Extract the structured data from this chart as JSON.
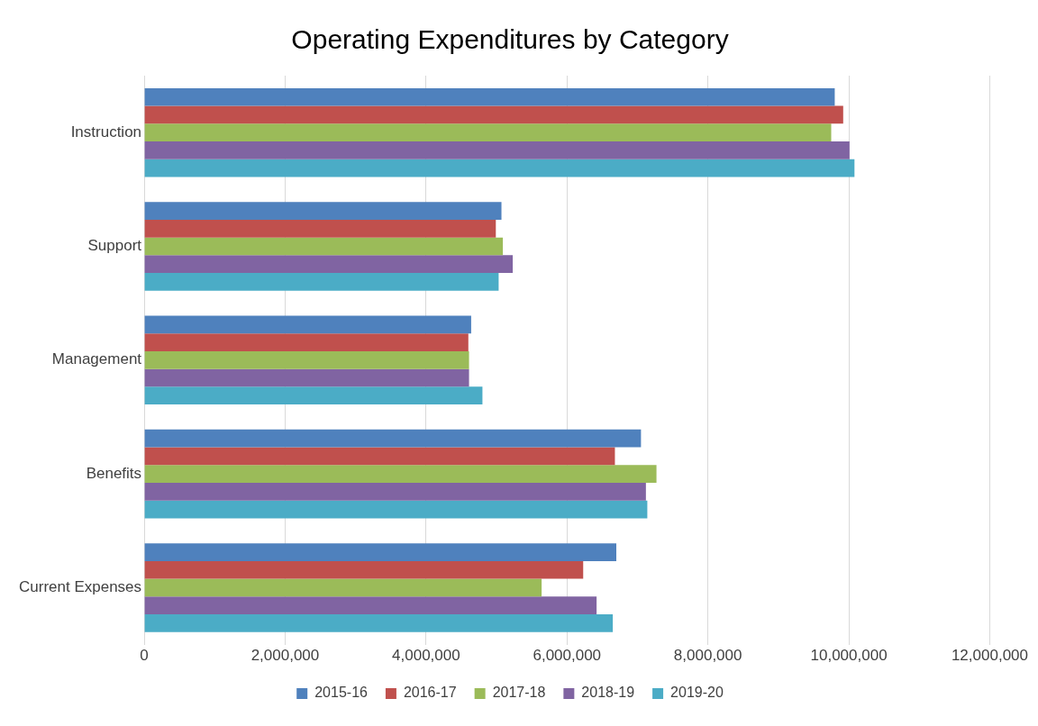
{
  "chart_data": {
    "type": "bar",
    "orientation": "horizontal",
    "title": "Operating Expenditures by Category",
    "categories": [
      "Instruction",
      "Support",
      "Management",
      "Benefits",
      "Current Expenses"
    ],
    "series": [
      {
        "name": "2015-16",
        "color": "#4f81bd",
        "values": [
          9800000,
          5070000,
          4640000,
          7050000,
          6700000
        ]
      },
      {
        "name": "2016-17",
        "color": "#c0504d",
        "values": [
          9920000,
          4990000,
          4600000,
          6680000,
          6230000
        ]
      },
      {
        "name": "2017-18",
        "color": "#9bbb59",
        "values": [
          9750000,
          5090000,
          4610000,
          7270000,
          5640000
        ]
      },
      {
        "name": "2018-19",
        "color": "#8064a2",
        "values": [
          10010000,
          5230000,
          4610000,
          7120000,
          6420000
        ]
      },
      {
        "name": "2019-20",
        "color": "#4bacc6",
        "values": [
          10080000,
          5030000,
          4800000,
          7140000,
          6650000
        ]
      }
    ],
    "xlim": [
      0,
      12000000
    ],
    "xticks": [
      0,
      {
        "value": 2000000,
        "label": "2,000,000"
      },
      {
        "value": 4000000,
        "label": "4,000,000"
      },
      {
        "value": 6000000,
        "label": "6,000,000"
      },
      {
        "value": 8000000,
        "label": "8,000,000"
      },
      {
        "value": 10000000,
        "label": "10,000,000"
      },
      {
        "value": 12000000,
        "label": "12,000,000"
      }
    ],
    "grid": "x",
    "legend": "bottom"
  }
}
